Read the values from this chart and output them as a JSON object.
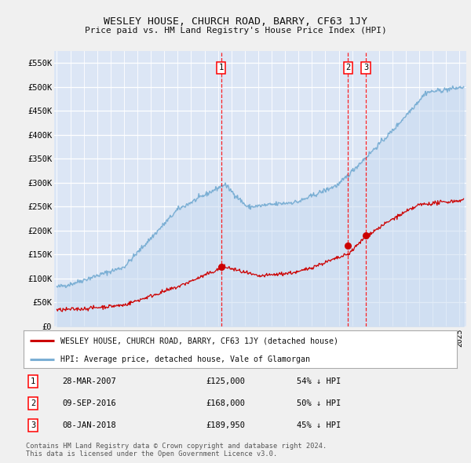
{
  "title": "WESLEY HOUSE, CHURCH ROAD, BARRY, CF63 1JY",
  "subtitle": "Price paid vs. HM Land Registry's House Price Index (HPI)",
  "ylabel_ticks": [
    "£0",
    "£50K",
    "£100K",
    "£150K",
    "£200K",
    "£250K",
    "£300K",
    "£350K",
    "£400K",
    "£450K",
    "£500K",
    "£550K"
  ],
  "ytick_values": [
    0,
    50000,
    100000,
    150000,
    200000,
    250000,
    300000,
    350000,
    400000,
    450000,
    500000,
    550000
  ],
  "ylim": [
    0,
    575000
  ],
  "xlim_start": 1994.8,
  "xlim_end": 2025.5,
  "background_color": "#dce6f5",
  "grid_color": "#ffffff",
  "outer_bg": "#f0f0f0",
  "legend_label_red": "WESLEY HOUSE, CHURCH ROAD, BARRY, CF63 1JY (detached house)",
  "legend_label_blue": "HPI: Average price, detached house, Vale of Glamorgan",
  "transaction_labels": [
    "1",
    "2",
    "3"
  ],
  "transaction_dates": [
    2007.24,
    2016.69,
    2018.02
  ],
  "transaction_prices": [
    125000,
    168000,
    189950
  ],
  "transaction_pct": [
    "54% ↓ HPI",
    "50% ↓ HPI",
    "45% ↓ HPI"
  ],
  "transaction_date_str": [
    "28-MAR-2007",
    "09-SEP-2016",
    "08-JAN-2018"
  ],
  "footer": "Contains HM Land Registry data © Crown copyright and database right 2024.\nThis data is licensed under the Open Government Licence v3.0.",
  "red_color": "#cc0000",
  "blue_color": "#7bafd4",
  "blue_fill": "#c5d9f0"
}
